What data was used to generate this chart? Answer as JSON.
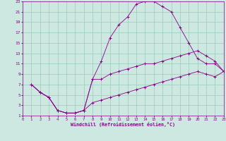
{
  "xlabel": "Windchill (Refroidissement éolien,°C)",
  "xlim": [
    0,
    23
  ],
  "ylim": [
    1,
    23
  ],
  "xticks": [
    0,
    1,
    2,
    3,
    4,
    5,
    6,
    7,
    8,
    9,
    10,
    11,
    12,
    13,
    14,
    15,
    16,
    17,
    18,
    19,
    20,
    21,
    22,
    23
  ],
  "yticks": [
    1,
    3,
    5,
    7,
    9,
    11,
    13,
    15,
    17,
    19,
    21,
    23
  ],
  "background_color": "#cce8e0",
  "line_color": "#880088",
  "grid_color": "#99ccbb",
  "lines": [
    {
      "x": [
        1,
        2,
        3,
        4,
        5,
        6,
        7,
        8,
        9,
        10,
        11,
        12,
        13,
        14,
        15,
        16,
        17,
        18,
        19,
        20,
        21,
        22,
        23
      ],
      "y": [
        7,
        5.5,
        4.5,
        2,
        1.5,
        1.5,
        2,
        8,
        11.5,
        16,
        18.5,
        20,
        22.5,
        23,
        23,
        22,
        21,
        18,
        15,
        12,
        11,
        11,
        9.5
      ]
    },
    {
      "x": [
        1,
        2,
        3,
        4,
        5,
        6,
        7,
        8,
        9,
        10,
        11,
        12,
        13,
        14,
        15,
        16,
        17,
        18,
        19,
        20,
        21,
        22,
        23
      ],
      "y": [
        7,
        5.5,
        4.5,
        2,
        1.5,
        1.5,
        2,
        8,
        8,
        9,
        9.5,
        10,
        10.5,
        11,
        11,
        11.5,
        12,
        12.5,
        13,
        13.5,
        12.5,
        11.5,
        9.5
      ]
    },
    {
      "x": [
        1,
        2,
        3,
        4,
        5,
        6,
        7,
        8,
        9,
        10,
        11,
        12,
        13,
        14,
        15,
        16,
        17,
        18,
        19,
        20,
        21,
        22,
        23
      ],
      "y": [
        7,
        5.5,
        4.5,
        2,
        1.5,
        1.5,
        2,
        3.5,
        4,
        4.5,
        5,
        5.5,
        6,
        6.5,
        7,
        7.5,
        8,
        8.5,
        9,
        9.5,
        9,
        8.5,
        9.5
      ]
    }
  ]
}
